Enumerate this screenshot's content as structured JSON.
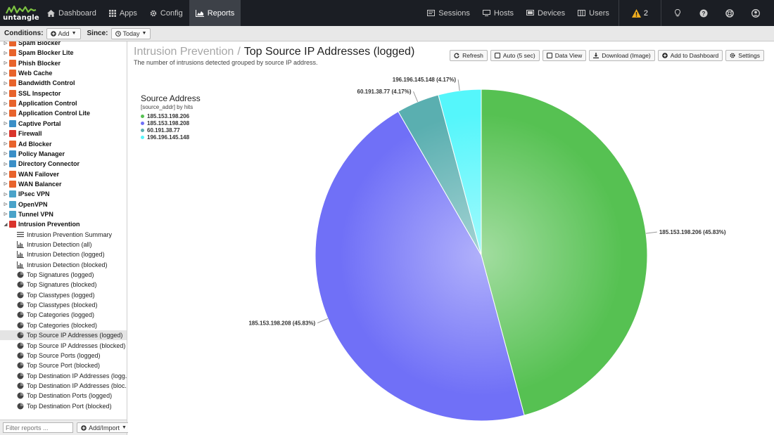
{
  "brand": {
    "name": "untangle"
  },
  "topnav": {
    "items": [
      {
        "key": "dashboard",
        "label": "Dashboard",
        "icon": "home-icon"
      },
      {
        "key": "apps",
        "label": "Apps",
        "icon": "grid-icon"
      },
      {
        "key": "config",
        "label": "Config",
        "icon": "gear-icon"
      },
      {
        "key": "reports",
        "label": "Reports",
        "icon": "area-chart-icon",
        "active": true
      }
    ],
    "right": [
      {
        "key": "sessions",
        "label": "Sessions",
        "icon": "sessions-icon"
      },
      {
        "key": "hosts",
        "label": "Hosts",
        "icon": "hosts-icon"
      },
      {
        "key": "devices",
        "label": "Devices",
        "icon": "devices-icon"
      },
      {
        "key": "users",
        "label": "Users",
        "icon": "users-icon"
      }
    ],
    "alerts_count": "2",
    "alert_color": "#f0ad1e"
  },
  "conditions": {
    "label": "Conditions:",
    "add_label": "Add",
    "since_label": "Since:",
    "since_value": "Today"
  },
  "sidebar": {
    "apps": [
      {
        "label": "Spam Blocker",
        "color": "#e8632b"
      },
      {
        "label": "Spam Blocker Lite",
        "color": "#e8632b"
      },
      {
        "label": "Phish Blocker",
        "color": "#e8632b"
      },
      {
        "label": "Web Cache",
        "color": "#e8632b"
      },
      {
        "label": "Bandwidth Control",
        "color": "#e8632b"
      },
      {
        "label": "SSL Inspector",
        "color": "#e8632b"
      },
      {
        "label": "Application Control",
        "color": "#e8632b"
      },
      {
        "label": "Application Control Lite",
        "color": "#e8632b"
      },
      {
        "label": "Captive Portal",
        "color": "#3a8fc7"
      },
      {
        "label": "Firewall",
        "color": "#d9342b"
      },
      {
        "label": "Ad Blocker",
        "color": "#e8632b"
      },
      {
        "label": "Policy Manager",
        "color": "#3a8fc7"
      },
      {
        "label": "Directory Connector",
        "color": "#3a8fc7"
      },
      {
        "label": "WAN Failover",
        "color": "#e8632b"
      },
      {
        "label": "WAN Balancer",
        "color": "#e8632b"
      },
      {
        "label": "IPsec VPN",
        "color": "#4aa3c9"
      },
      {
        "label": "OpenVPN",
        "color": "#4aa3c9"
      },
      {
        "label": "Tunnel VPN",
        "color": "#4aa3c9"
      },
      {
        "label": "Intrusion Prevention",
        "color": "#d9342b",
        "expanded": true
      }
    ],
    "reports": [
      {
        "label": "Intrusion Prevention Summary",
        "icon": "text-icon"
      },
      {
        "label": "Intrusion Detection (all)",
        "icon": "bar-chart-icon"
      },
      {
        "label": "Intrusion Detection (logged)",
        "icon": "bar-chart-icon"
      },
      {
        "label": "Intrusion Detection (blocked)",
        "icon": "bar-chart-icon"
      },
      {
        "label": "Top Signatures (logged)",
        "icon": "pie-chart-icon"
      },
      {
        "label": "Top Signatures (blocked)",
        "icon": "pie-chart-icon"
      },
      {
        "label": "Top Classtypes (logged)",
        "icon": "pie-chart-icon"
      },
      {
        "label": "Top Classtypes (blocked)",
        "icon": "pie-chart-icon"
      },
      {
        "label": "Top Categories (logged)",
        "icon": "pie-chart-icon"
      },
      {
        "label": "Top Categories (blocked)",
        "icon": "pie-chart-icon"
      },
      {
        "label": "Top Source IP Addresses (logged)",
        "icon": "pie-chart-icon",
        "selected": true
      },
      {
        "label": "Top Source IP Addresses (blocked)",
        "icon": "pie-chart-icon"
      },
      {
        "label": "Top Source Ports (logged)",
        "icon": "pie-chart-icon"
      },
      {
        "label": "Top Source Port (blocked)",
        "icon": "pie-chart-icon"
      },
      {
        "label": "Top Destination IP Addresses (logg...",
        "icon": "pie-chart-icon"
      },
      {
        "label": "Top Destination IP Addresses (bloc...",
        "icon": "pie-chart-icon"
      },
      {
        "label": "Top Destination Ports (logged)",
        "icon": "pie-chart-icon"
      },
      {
        "label": "Top Destination Port (blocked)",
        "icon": "pie-chart-icon"
      }
    ],
    "filter_placeholder": "Filter reports ...",
    "add_import_label": "Add/Import"
  },
  "report": {
    "crumb": "Intrusion Prevention",
    "separator": "/",
    "title": "Top Source IP Addresses (logged)",
    "subtitle": "The number of intrusions detected grouped by source IP address."
  },
  "toolbar": {
    "refresh": "Refresh",
    "auto": "Auto (5 sec)",
    "data_view": "Data View",
    "download": "Download (Image)",
    "add_dashboard": "Add to Dashboard",
    "settings": "Settings"
  },
  "legend": {
    "title": "Source Address",
    "subtitle": "[source_addr] by hits"
  },
  "chart_data": {
    "type": "pie",
    "categories": [
      "185.153.198.206",
      "185.153.198.208",
      "60.191.38.77",
      "196.196.145.148"
    ],
    "values": [
      45.83,
      45.83,
      4.17,
      4.17
    ],
    "labels": [
      "185.153.198.206 (45.83%)",
      "185.153.198.208 (45.83%)",
      "60.191.38.77 (4.17%)",
      "196.196.145.148 (4.17%)"
    ],
    "colors": [
      "#56c152",
      "#7070f7",
      "#5aafb0",
      "#55f6fb"
    ],
    "legend_placement": "top-left"
  }
}
